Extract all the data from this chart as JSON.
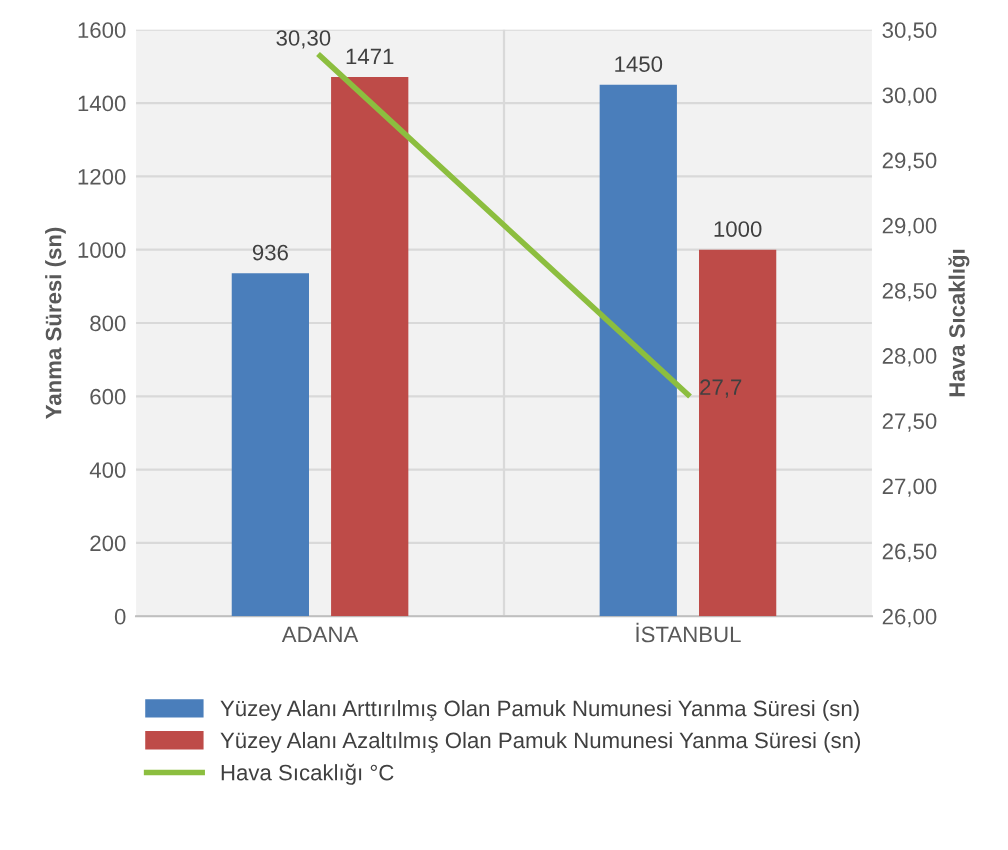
{
  "chart_data": {
    "type": "bar",
    "categories": [
      "ADANA",
      "İSTANBUL"
    ],
    "ylabel": "Yanma Süresi (sn)",
    "y2label": "Hava Sıcaklığı",
    "series": [
      {
        "name": "Yüzey Alanı Arttırılmış Olan Pamuk Numunesi Yanma Süresi (sn)",
        "color": "#4a7ebb",
        "values": [
          936,
          1450
        ],
        "value_labels": [
          "936",
          "1450"
        ]
      },
      {
        "name": "Yüzey Alanı Azaltılmış Olan Pamuk Numunesi Yanma Süresi (sn)",
        "color": "#be4b48",
        "values": [
          1471,
          1000
        ],
        "value_labels": [
          "1471",
          "1000"
        ]
      },
      {
        "name": "Hava Sıcaklığı °C",
        "type": "line",
        "axis": "y2",
        "color": "#8cbe3f",
        "values": [
          30.3,
          27.7
        ],
        "value_labels": [
          "30,30",
          "27,7"
        ]
      }
    ],
    "ylim": [
      0,
      1600
    ],
    "yticks": [
      0,
      200,
      400,
      600,
      800,
      1000,
      1200,
      1400,
      1600
    ],
    "y2lim": [
      26,
      30.5
    ],
    "y2ticks": [
      {
        "value": 26,
        "label": "26,00"
      },
      {
        "value": 26.5,
        "label": "26,50"
      },
      {
        "value": 27,
        "label": "27,00"
      },
      {
        "value": 27.5,
        "label": "27,50"
      },
      {
        "value": 28,
        "label": "28,00"
      },
      {
        "value": 28.5,
        "label": "28,50"
      },
      {
        "value": 29,
        "label": "29,00"
      },
      {
        "value": 29.5,
        "label": "29,50"
      },
      {
        "value": 30,
        "label": "30,00"
      },
      {
        "value": 30.5,
        "label": "30,50"
      }
    ],
    "grid": true,
    "legend": "bottom"
  }
}
